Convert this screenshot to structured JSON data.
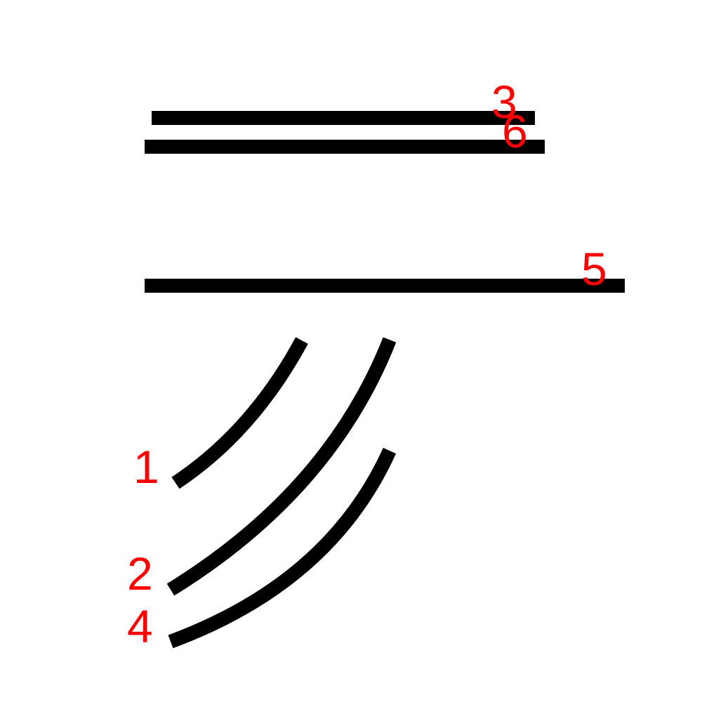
{
  "colors": {
    "stroke": "#000000",
    "label": "#ff0000",
    "background": "#ffffff"
  },
  "strokes": [
    {
      "order": "1",
      "kind": "curve"
    },
    {
      "order": "2",
      "kind": "curve"
    },
    {
      "order": "3",
      "kind": "horizontal"
    },
    {
      "order": "4",
      "kind": "curve"
    },
    {
      "order": "5",
      "kind": "horizontal"
    },
    {
      "order": "6",
      "kind": "horizontal"
    }
  ]
}
